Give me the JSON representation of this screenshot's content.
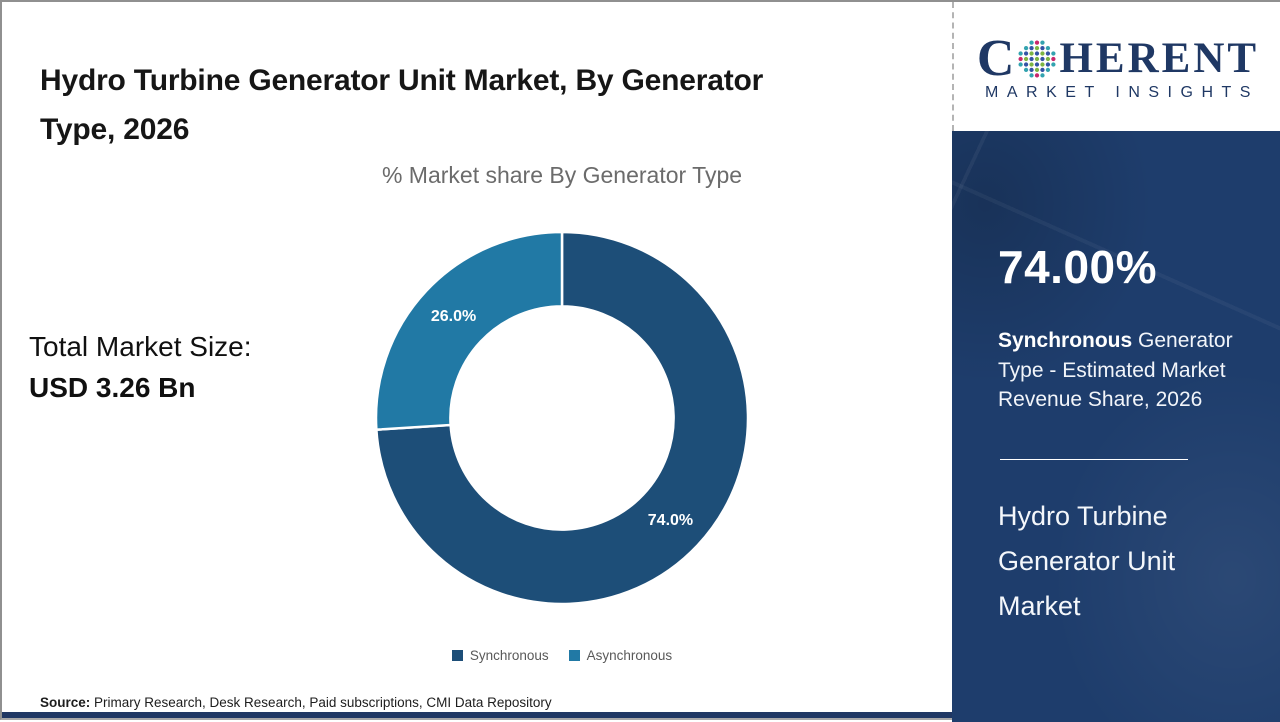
{
  "header": {
    "title": "Hydro Turbine Generator Unit Market, By Generator Type, 2026"
  },
  "left_panel": {
    "total_label": "Total Market Size:",
    "total_value": "USD 3.26 Bn"
  },
  "chart_data": {
    "type": "pie",
    "donut": true,
    "title": "% Market share By Generator Type",
    "categories": [
      "Synchronous",
      "Asynchronous"
    ],
    "values": [
      74.0,
      26.0
    ],
    "labels": [
      "74.0%",
      "26.0%"
    ],
    "colors": [
      "#1d4e78",
      "#2179a5"
    ],
    "start_angle_deg": 0,
    "direction": "clockwise",
    "inner_radius_ratio": 0.6,
    "legend_position": "bottom"
  },
  "sidebar": {
    "stat_value": "74.00%",
    "stat_desc_highlight": "Synchronous",
    "stat_desc_rest": " Generator Type - Estimated Market Revenue Share, 2026",
    "market_name": "Hydro Turbine Generator Unit Market",
    "panel_color": "#1e3d6c"
  },
  "logo": {
    "brand_start": "C",
    "brand_end": "HERENT",
    "subtitle": "MARKET INSIGHTS",
    "navy": "#1f3864",
    "globe_colors": [
      "#c9276b",
      "#33a3af",
      "#7db543",
      "#3353a4"
    ]
  },
  "footer": {
    "source_label": "Source:",
    "source_text": " Primary Research, Desk Research, Paid subscriptions, CMI Data Repository"
  }
}
